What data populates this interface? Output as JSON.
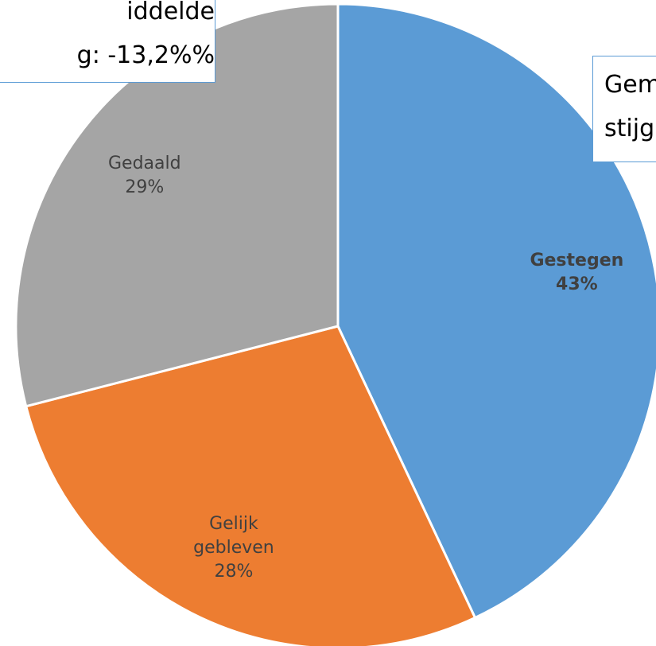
{
  "chart_data": {
    "type": "pie",
    "categories": [
      "Gestegen",
      "Gelijk gebleven",
      "Gedaald"
    ],
    "values": [
      43,
      28,
      29
    ],
    "value_labels": [
      "43%",
      "28%",
      "29%"
    ],
    "colors": [
      "#5b9bd5",
      "#ed7d31",
      "#a5a5a5"
    ],
    "annotations": [
      [
        "iddelde",
        "g: -13,2%%"
      ],
      [
        "Gem",
        "stijg"
      ]
    ]
  }
}
